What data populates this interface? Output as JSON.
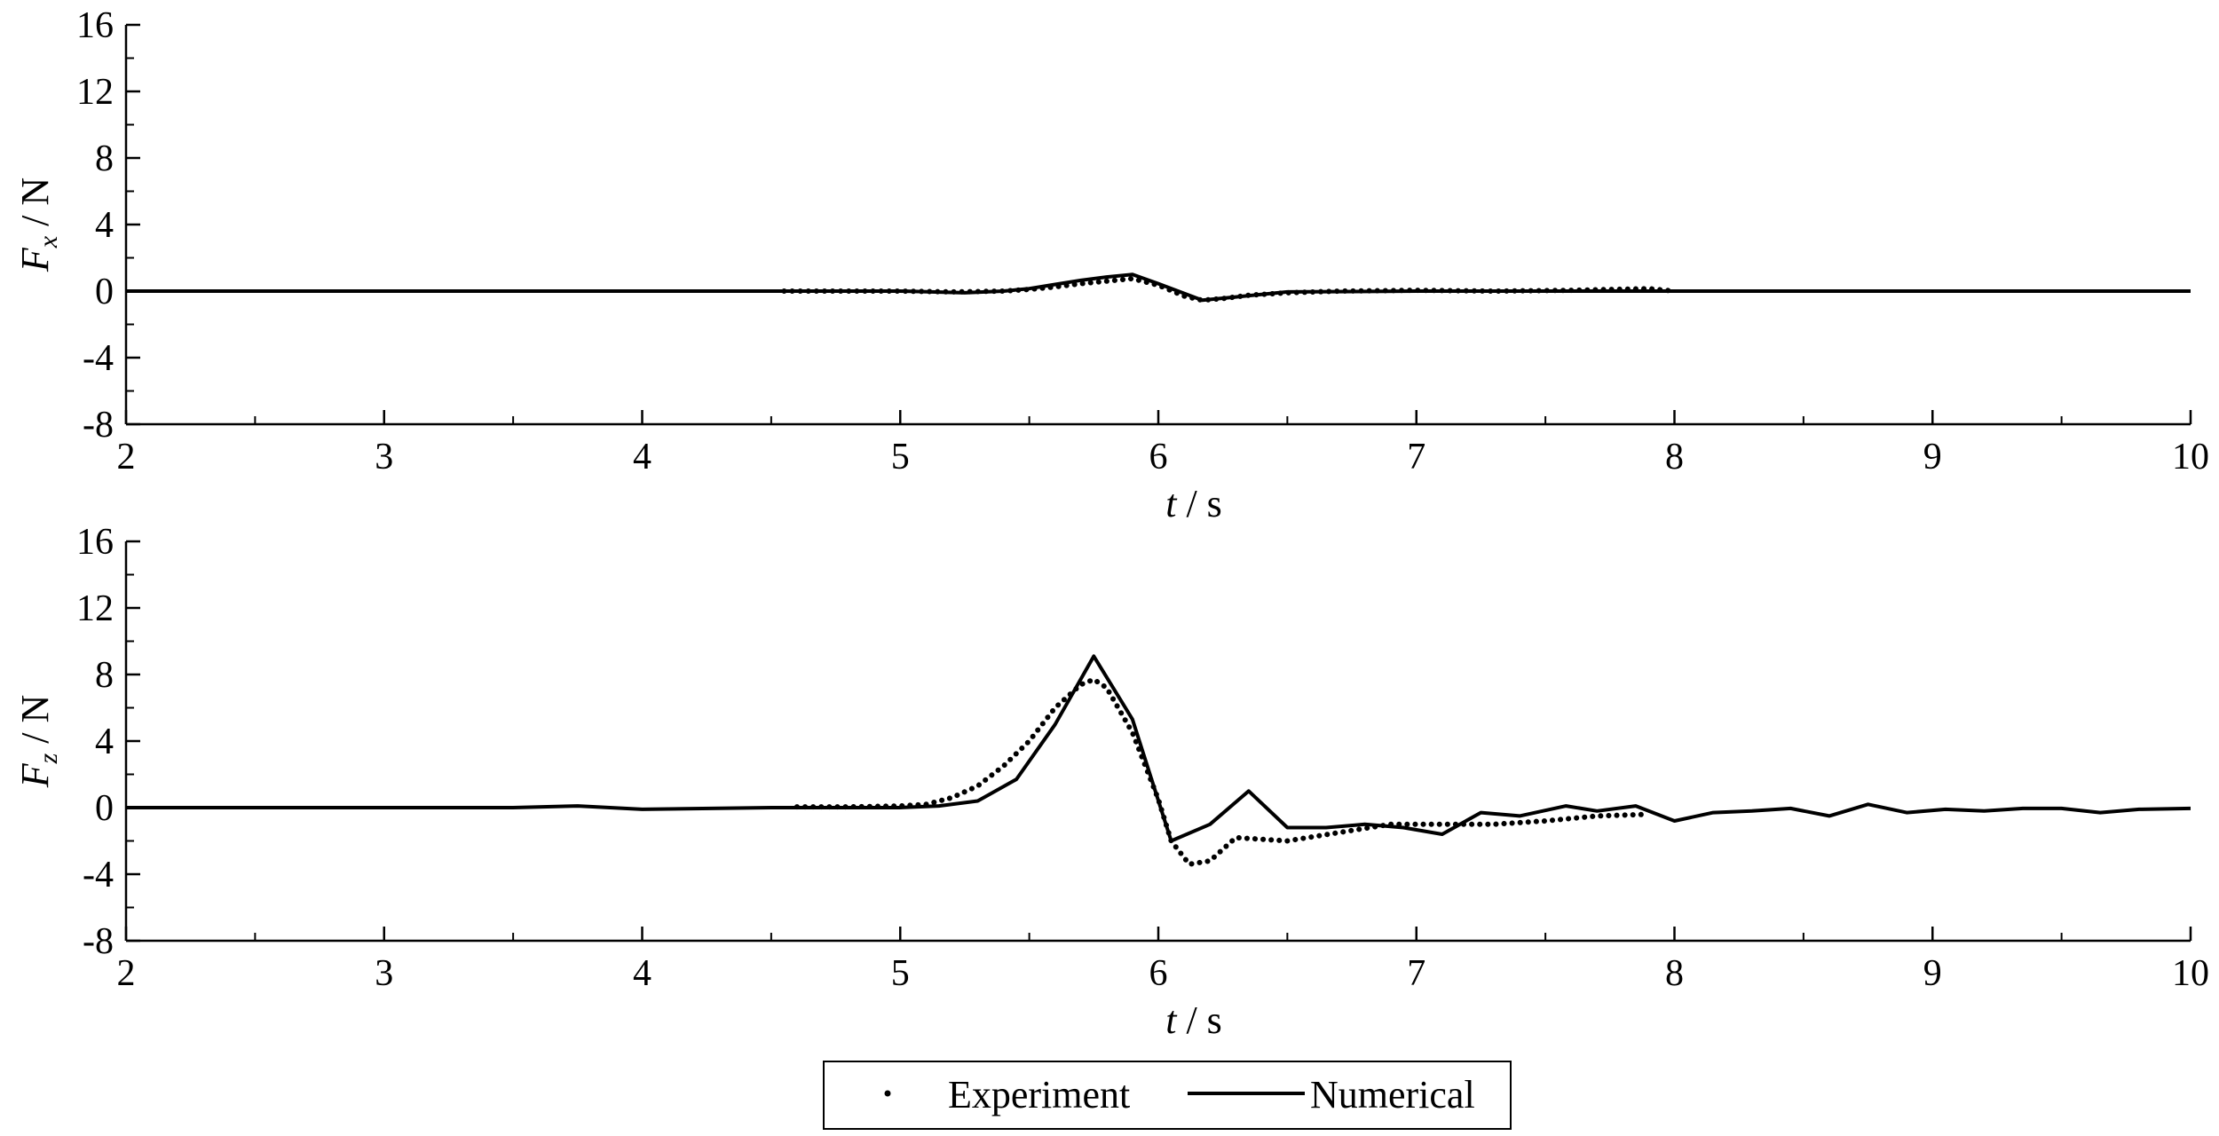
{
  "chart_data": [
    {
      "type": "line",
      "panel": "top",
      "ylabel_symbol": "F",
      "ylabel_subscript": "x",
      "ylabel_unit": " / N",
      "xlabel_symbol": "t",
      "xlabel_unit": " / s",
      "xlim": [
        2,
        10
      ],
      "ylim": [
        -8,
        16
      ],
      "xticks": [
        "2",
        "3",
        "4",
        "5",
        "6",
        "7",
        "8",
        "9",
        "10"
      ],
      "yticks": [
        "16",
        "12",
        "8",
        "4",
        "0",
        "-4",
        "-8"
      ],
      "grid": false,
      "series": [
        {
          "name": "Experiment",
          "style": "dotted",
          "x": [
            4.55,
            4.8,
            5.0,
            5.2,
            5.4,
            5.5,
            5.6,
            5.7,
            5.8,
            5.9,
            6.0,
            6.1,
            6.17,
            6.25,
            6.35,
            6.5,
            6.7,
            7.0,
            7.3,
            7.6,
            7.9,
            8.0
          ],
          "y": [
            0,
            0,
            0,
            -0.05,
            0,
            0.1,
            0.25,
            0.45,
            0.6,
            0.75,
            0.35,
            -0.3,
            -0.55,
            -0.45,
            -0.25,
            -0.1,
            0,
            0.05,
            0,
            0.05,
            0.15,
            0
          ]
        },
        {
          "name": "Numerical",
          "style": "solid",
          "x": [
            2.0,
            4.5,
            5.0,
            5.25,
            5.4,
            5.5,
            5.6,
            5.7,
            5.8,
            5.9,
            6.0,
            6.17,
            6.3,
            6.5,
            7.0,
            8.0,
            10.0
          ],
          "y": [
            0,
            0,
            0,
            -0.1,
            0,
            0.15,
            0.4,
            0.65,
            0.85,
            1.0,
            0.45,
            -0.55,
            -0.35,
            -0.05,
            0,
            0,
            0
          ]
        }
      ]
    },
    {
      "type": "line",
      "panel": "bottom",
      "ylabel_symbol": "F",
      "ylabel_subscript": "z",
      "ylabel_unit": " / N",
      "xlabel_symbol": "t",
      "xlabel_unit": " / s",
      "xlim": [
        2,
        10
      ],
      "ylim": [
        -8,
        16
      ],
      "xticks": [
        "2",
        "3",
        "4",
        "5",
        "6",
        "7",
        "8",
        "9",
        "10"
      ],
      "yticks": [
        "16",
        "12",
        "8",
        "4",
        "0",
        "-4",
        "-8"
      ],
      "grid": false,
      "series": [
        {
          "name": "Experiment",
          "style": "dotted",
          "x": [
            4.6,
            4.8,
            5.0,
            5.1,
            5.2,
            5.3,
            5.4,
            5.5,
            5.6,
            5.7,
            5.75,
            5.8,
            5.9,
            6.0,
            6.05,
            6.12,
            6.2,
            6.3,
            6.5,
            6.7,
            6.9,
            7.1,
            7.3,
            7.5,
            7.7,
            7.9
          ],
          "y": [
            0.05,
            0.05,
            0.1,
            0.2,
            0.6,
            1.3,
            2.5,
            4.0,
            6.0,
            7.4,
            7.7,
            7.2,
            4.5,
            0.5,
            -2.0,
            -3.4,
            -3.2,
            -1.8,
            -2.0,
            -1.5,
            -1.0,
            -1.0,
            -1.0,
            -0.8,
            -0.5,
            -0.4
          ]
        },
        {
          "name": "Numerical",
          "style": "solid",
          "x": [
            2.0,
            3.5,
            3.75,
            4.0,
            4.5,
            5.0,
            5.15,
            5.3,
            5.45,
            5.6,
            5.75,
            5.9,
            6.05,
            6.2,
            6.35,
            6.5,
            6.65,
            6.8,
            6.95,
            7.1,
            7.25,
            7.4,
            7.58,
            7.7,
            7.85,
            8.0,
            8.15,
            8.3,
            8.45,
            8.6,
            8.75,
            8.9,
            9.05,
            9.2,
            9.35,
            9.5,
            9.65,
            9.8,
            10.0
          ],
          "y": [
            0,
            0,
            0.1,
            -0.1,
            0,
            0,
            0.1,
            0.4,
            1.7,
            5.0,
            9.1,
            5.3,
            -2.0,
            -1.0,
            1.0,
            -1.2,
            -1.2,
            -1.0,
            -1.2,
            -1.6,
            -0.3,
            -0.5,
            0.1,
            -0.2,
            0.1,
            -0.8,
            -0.3,
            -0.2,
            -0.05,
            -0.5,
            0.2,
            -0.3,
            -0.1,
            -0.2,
            -0.05,
            -0.05,
            -0.3,
            -0.1,
            -0.05
          ]
        }
      ]
    }
  ],
  "legend": {
    "items": [
      {
        "label": "Experiment",
        "style": "dotted"
      },
      {
        "label": "Numerical",
        "style": "solid"
      }
    ],
    "placement": "bottom-center"
  }
}
